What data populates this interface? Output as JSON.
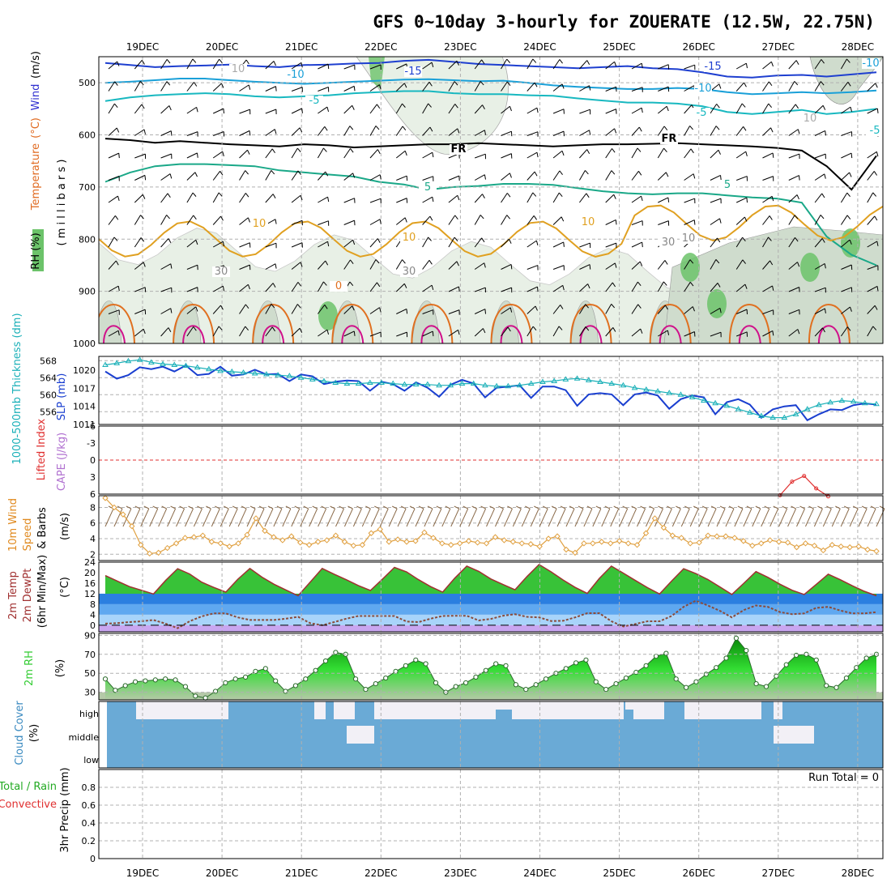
{
  "title": "GFS 0~10day 3-hourly for ZOUERATE (12.5W, 22.75N)",
  "dates": [
    "19DEC",
    "20DEC",
    "21DEC",
    "22DEC",
    "23DEC",
    "24DEC",
    "25DEC",
    "26DEC",
    "27DEC",
    "28DEC"
  ],
  "colors": {
    "grid": "#b0b0b0",
    "rh_light": "#e8f0e6",
    "rh_mid": "#cfdccd",
    "rh_green": "#6cc36a",
    "slp": "#1a3fd0",
    "thickness": "#1ab0b8",
    "lifted": "#e03030",
    "wind": "#e0a040",
    "barb": "#8b6b4a",
    "temp_fill": "#22bb22",
    "temp_line": "#a03030",
    "cloud": "#6aaad6",
    "cloud_clear": "#f2f0f6",
    "rh2m": "#33cc33"
  },
  "chart_data": [
    {
      "type": "contour",
      "panel": "upper-air",
      "ylabel_parts": [
        "RH (%)",
        "Temperature",
        "(°C)",
        "Wind",
        "(m/s)"
      ],
      "ylabel_units": "( m i l l i b a r s )",
      "yticks": [
        500,
        600,
        700,
        800,
        900,
        1000
      ],
      "ylim": [
        450,
        1000
      ],
      "contour_labels": [
        "-15",
        "-15",
        "-10",
        "-10",
        "-10",
        "-5",
        "-5",
        "-5",
        "5",
        "5",
        "10",
        "10",
        "10",
        "0",
        "FR",
        "FR",
        "10",
        "10",
        "30",
        "30",
        "10",
        "30"
      ],
      "levels": {
        "fr": [
          607,
          610,
          615,
          612,
          615,
          618,
          620,
          622,
          618,
          620,
          624,
          622,
          620,
          618,
          618,
          616,
          618,
          620,
          622,
          620,
          618,
          618,
          617,
          616,
          618,
          620,
          622,
          625,
          630,
          660,
          705,
          640
        ],
        "t_minus15": [
          462,
          466,
          470,
          468,
          467,
          465,
          468,
          470,
          466,
          465,
          463,
          462,
          458,
          456,
          460,
          464,
          466,
          468,
          470,
          472,
          470,
          468,
          472,
          474,
          480,
          488,
          490,
          486,
          485,
          488,
          484,
          480
        ],
        "t_minus10": [
          500,
          498,
          495,
          492,
          492,
          495,
          498,
          500,
          502,
          500,
          498,
          496,
          494,
          493,
          495,
          497,
          496,
          500,
          505,
          508,
          510,
          512,
          512,
          510,
          512,
          518,
          522,
          520,
          518,
          520,
          518,
          515
        ],
        "t_minus5": [
          535,
          528,
          524,
          522,
          520,
          522,
          526,
          528,
          526,
          524,
          520,
          518,
          516,
          516,
          520,
          522,
          522,
          524,
          525,
          530,
          534,
          538,
          538,
          540,
          545,
          556,
          560,
          556,
          552,
          560,
          556,
          550
        ],
        "t_5": [
          690,
          672,
          660,
          656,
          656,
          658,
          660,
          668,
          672,
          676,
          680,
          690,
          695,
          705,
          700,
          698,
          694,
          694,
          696,
          702,
          708,
          712,
          714,
          712,
          712,
          716,
          720,
          722,
          730,
          795,
          830,
          850
        ]
      },
      "rh_values": [
        30,
        30,
        30,
        10,
        10,
        30
      ]
    },
    {
      "type": "line",
      "panel": "slp-thickness",
      "ylabel_left": "1000-500mb Thickness (dm)",
      "ylabel_right": "SLP (mb)",
      "thickness_ticks": [
        568,
        564,
        560,
        556
      ],
      "slp_ticks": [
        1020,
        1017,
        1014,
        1011
      ],
      "thickness_range": [
        553,
        569
      ],
      "slp_range": [
        1011,
        1022
      ],
      "series": [
        {
          "name": "SLP",
          "values": [
            1019.8,
            1018.6,
            1019.2,
            1020.5,
            1020.2,
            1020.6,
            1019.8,
            1020.8,
            1019.2,
            1019.4,
            1020.6,
            1019.1,
            1019.3,
            1020.1,
            1019.3,
            1019.4,
            1018.2,
            1019.3,
            1019.0,
            1017.7,
            1018.1,
            1018.3,
            1018.2,
            1016.6,
            1018.1,
            1017.7,
            1016.6,
            1018.0,
            1017.1,
            1015.6,
            1017.6,
            1018.4,
            1017.8,
            1015.5,
            1017.1,
            1017.3,
            1017.5,
            1015.4,
            1017.3,
            1017.3,
            1016.7,
            1014.1,
            1016.0,
            1016.2,
            1016.0,
            1014.2,
            1016.0,
            1016.3,
            1015.8,
            1013.6,
            1015.2,
            1015.8,
            1015.5,
            1012.7,
            1014.7,
            1015.2,
            1014.3,
            1012.1,
            1013.5,
            1014.0,
            1014.2,
            1011.7,
            1012.7,
            1013.5,
            1013.4,
            1014.2,
            1014.5,
            1014.3
          ]
        },
        {
          "name": "Thickness",
          "values": [
            567.0,
            567.4,
            567.9,
            568.2,
            567.6,
            567.2,
            567.0,
            566.8,
            566.4,
            566.0,
            565.6,
            565.4,
            565.2,
            565.0,
            564.8,
            564.6,
            564.4,
            564.0,
            563.6,
            563.2,
            562.8,
            562.6,
            562.6,
            562.8,
            562.8,
            562.6,
            562.4,
            562.4,
            562.4,
            562.2,
            562.2,
            562.6,
            562.6,
            562.2,
            562.0,
            562.0,
            562.2,
            562.6,
            563.0,
            563.2,
            563.6,
            563.8,
            563.4,
            563.0,
            562.6,
            562.2,
            561.6,
            561.2,
            560.8,
            560.4,
            560.0,
            559.4,
            558.6,
            558.0,
            557.4,
            556.6,
            555.8,
            555.0,
            554.6,
            554.6,
            555.4,
            556.6,
            557.6,
            558.2,
            558.6,
            558.4,
            558.0,
            557.8
          ]
        }
      ]
    },
    {
      "type": "line",
      "panel": "lifted-index-cape",
      "ylabel_left": "Lifted Index",
      "ylabel_right": "CAPE (J/kg)",
      "yticks": [
        "-6",
        "-3",
        "0",
        "3",
        "6"
      ],
      "ylim": [
        -6,
        6
      ],
      "series": [
        {
          "name": "Lifted Index",
          "x_start_index": 56,
          "values": [
            6.2,
            3.8,
            2.8,
            5.0,
            6.4
          ]
        }
      ]
    },
    {
      "type": "line",
      "panel": "10m-wind",
      "ylabel": "10m Wind Speed & Barbs (m/s)",
      "yticks": [
        2,
        4,
        6,
        8
      ],
      "ylim": [
        1.2,
        9.5
      ],
      "series": [
        {
          "name": "10m Wind Speed",
          "values": [
            9.2,
            8.0,
            7.1,
            5.6,
            3.2,
            2.1,
            2.2,
            2.8,
            3.4,
            4.1,
            4.2,
            4.4,
            3.6,
            3.4,
            3.0,
            3.4,
            4.5,
            6.6,
            5.0,
            4.2,
            3.8,
            4.3,
            3.5,
            3.2,
            3.6,
            3.8,
            4.4,
            3.6,
            3.1,
            3.2,
            4.7,
            5.2,
            3.6,
            3.9,
            3.6,
            3.7,
            4.8,
            4.1,
            3.4,
            3.2,
            3.4,
            3.7,
            3.5,
            3.4,
            4.2,
            3.8,
            3.6,
            3.4,
            3.3,
            3.0,
            4.0,
            4.3,
            2.6,
            2.2,
            3.4,
            3.4,
            3.6,
            3.4,
            3.7,
            3.4,
            3.2,
            4.7,
            6.6,
            5.4,
            4.4,
            4.1,
            3.4,
            3.5,
            4.4,
            4.3,
            4.3,
            4.1,
            3.7,
            3.1,
            3.4,
            3.8,
            3.6,
            3.5,
            2.9,
            3.4,
            3.1,
            2.5,
            3.2,
            3.0,
            2.9,
            3.0,
            2.6,
            2.4
          ]
        }
      ]
    },
    {
      "type": "area",
      "panel": "2m-temp-dewpoint",
      "ylabel": "2m Temp 2m DewPt (6hr Min/Max) (°C)",
      "yticks": [
        0,
        4,
        8,
        12,
        16,
        20,
        24
      ],
      "ylim": [
        -2.5,
        24
      ],
      "series": [
        {
          "name": "2m Temp",
          "values": [
            18.9,
            16.8,
            14.7,
            13.3,
            11.9,
            17.0,
            21.5,
            19.5,
            16.4,
            14.4,
            12.6,
            17.5,
            21.6,
            18.3,
            15.6,
            13.4,
            11.2,
            16.4,
            21.6,
            19.4,
            17.3,
            15.1,
            13.2,
            17.5,
            22.0,
            20.3,
            17.3,
            14.7,
            12.6,
            17.9,
            22.5,
            20.5,
            17.6,
            15.5,
            13.5,
            18.5,
            23.1,
            20.3,
            17.2,
            14.4,
            12.1,
            17.8,
            22.5,
            19.8,
            17.0,
            14.3,
            11.9,
            16.8,
            21.5,
            19.7,
            17.4,
            14.6,
            11.7,
            16.0,
            20.4,
            18.2,
            15.6,
            13.3,
            11.7,
            15.5,
            19.4,
            17.3,
            15.0,
            12.9,
            11.2
          ]
        },
        {
          "name": "2m DewPt",
          "values": [
            0.6,
            0.8,
            1.2,
            1.5,
            2.0,
            0.6,
            -1.1,
            1.5,
            3.4,
            4.5,
            4.5,
            3.0,
            2.0,
            2.0,
            2.0,
            2.5,
            3.2,
            0.8,
            0.0,
            1.2,
            2.5,
            3.5,
            3.5,
            3.5,
            3.5,
            1.4,
            1.2,
            2.5,
            3.5,
            3.6,
            3.6,
            1.8,
            2.4,
            3.6,
            4.2,
            3.2,
            3.0,
            1.6,
            1.7,
            3.0,
            4.6,
            4.6,
            1.5,
            -0.5,
            0.5,
            1.5,
            1.5,
            3.5,
            7.0,
            9.3,
            7.5,
            5.5,
            3.0,
            5.8,
            7.5,
            7.0,
            5.0,
            4.2,
            4.5,
            6.6,
            7.0,
            5.6,
            4.5,
            4.5,
            5.0
          ]
        }
      ]
    },
    {
      "type": "area",
      "panel": "2m-rh",
      "ylabel": "2m RH (%)",
      "yticks": [
        30,
        50,
        70,
        90
      ],
      "ylim": [
        22,
        92
      ],
      "series": [
        {
          "name": "2m RH",
          "values": [
            44,
            32,
            37,
            41,
            42,
            43,
            44,
            43,
            36,
            26,
            24,
            31,
            40,
            44,
            46,
            52,
            55,
            42,
            31,
            37,
            44,
            53,
            63,
            72,
            70,
            44,
            33,
            39,
            45,
            52,
            58,
            64,
            60,
            40,
            30,
            36,
            40,
            46,
            53,
            60,
            58,
            38,
            33,
            38,
            44,
            50,
            55,
            61,
            64,
            41,
            33,
            39,
            45,
            51,
            58,
            68,
            71,
            44,
            35,
            41,
            49,
            56,
            66,
            87,
            74,
            39,
            36,
            47,
            59,
            69,
            70,
            64,
            37,
            35,
            45,
            56,
            66,
            70
          ]
        }
      ]
    },
    {
      "type": "heatmap",
      "panel": "cloud-cover",
      "ylabel": "Cloud Cover (%)",
      "rows": [
        "high",
        "middle",
        "low"
      ]
    },
    {
      "type": "bar",
      "panel": "precip",
      "ylabel_parts": [
        "3hr Precip (mm)",
        "Total / Rain",
        "Convective"
      ],
      "yticks": [
        "0",
        "0.2",
        "0.4",
        "0.6",
        "0.8"
      ],
      "ylim": [
        0,
        1.0
      ],
      "run_total": "Run Total = 0",
      "values": []
    }
  ]
}
